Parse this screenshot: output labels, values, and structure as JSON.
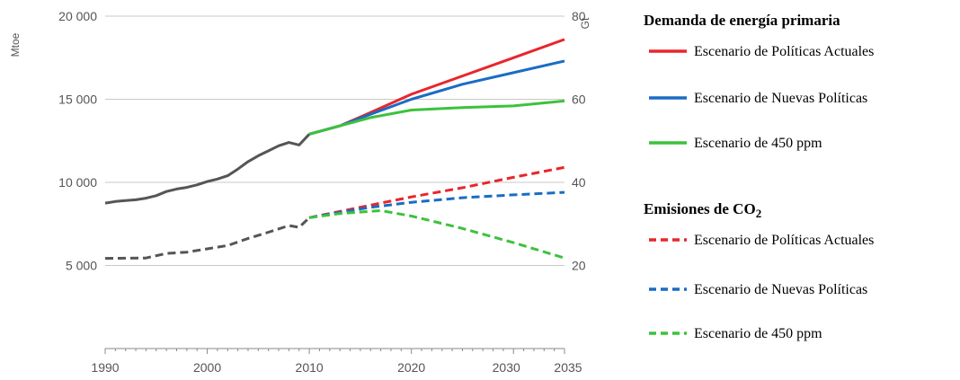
{
  "chart_data": {
    "type": "line",
    "x_ticks": [
      "1990",
      "2000",
      "2010",
      "2020",
      "2030",
      "2035"
    ],
    "xlim": [
      1990,
      2035
    ],
    "left_axis": {
      "unit": "Mtoe",
      "ticks": [
        "5 000",
        "10 000",
        "15 000",
        "20 000"
      ],
      "ylim": [
        0,
        20000
      ]
    },
    "right_axis": {
      "unit": "Gt",
      "ticks": [
        "20",
        "40",
        "60",
        "80"
      ],
      "ylim": [
        0,
        80
      ]
    },
    "grid": true,
    "legend_position": "right",
    "legend_groups": [
      {
        "title": "Demanda de energía primaria",
        "entries": [
          {
            "label": "Escenario de Políticas Actuales",
            "color": "#e8262b",
            "style": "solid"
          },
          {
            "label": "Escenario de Nuevas Políticas",
            "color": "#1a6cc4",
            "style": "solid"
          },
          {
            "label": "Escenario de 450 ppm",
            "color": "#3cc23c",
            "style": "solid"
          }
        ]
      },
      {
        "title": "Emisiones de CO",
        "title_subscript": "2",
        "entries": [
          {
            "label": "Escenario de Políticas Actuales",
            "color": "#e8262b",
            "style": "dashed"
          },
          {
            "label": "Escenario de Nuevas Políticas",
            "color": "#1a6cc4",
            "style": "dashed"
          },
          {
            "label": "Escenario de 450 ppm",
            "color": "#3cc23c",
            "style": "dashed"
          }
        ]
      }
    ],
    "series": [
      {
        "axis": "left",
        "style": "solid",
        "color": "#555555",
        "points": [
          [
            1990,
            8750
          ],
          [
            1991,
            8850
          ],
          [
            1992,
            8900
          ],
          [
            1993,
            8950
          ],
          [
            1994,
            9050
          ],
          [
            1995,
            9200
          ],
          [
            1996,
            9450
          ],
          [
            1997,
            9600
          ],
          [
            1998,
            9700
          ],
          [
            1999,
            9850
          ],
          [
            2000,
            10050
          ],
          [
            2001,
            10200
          ],
          [
            2002,
            10400
          ],
          [
            2003,
            10800
          ],
          [
            2004,
            11250
          ],
          [
            2005,
            11600
          ],
          [
            2006,
            11900
          ],
          [
            2007,
            12200
          ],
          [
            2008,
            12400
          ],
          [
            2009,
            12250
          ],
          [
            2010,
            12900
          ]
        ]
      },
      {
        "axis": "left",
        "style": "solid",
        "color": "#e8262b",
        "points": [
          [
            2010,
            12900
          ],
          [
            2013,
            13400
          ],
          [
            2016,
            14200
          ],
          [
            2020,
            15300
          ],
          [
            2025,
            16400
          ],
          [
            2030,
            17500
          ],
          [
            2035,
            18600
          ]
        ]
      },
      {
        "axis": "left",
        "style": "solid",
        "color": "#1a6cc4",
        "points": [
          [
            2010,
            12900
          ],
          [
            2013,
            13400
          ],
          [
            2016,
            14100
          ],
          [
            2020,
            15000
          ],
          [
            2025,
            15900
          ],
          [
            2030,
            16600
          ],
          [
            2035,
            17300
          ]
        ]
      },
      {
        "axis": "left",
        "style": "solid",
        "color": "#3cc23c",
        "points": [
          [
            2010,
            12900
          ],
          [
            2013,
            13400
          ],
          [
            2016,
            13900
          ],
          [
            2020,
            14350
          ],
          [
            2025,
            14500
          ],
          [
            2030,
            14600
          ],
          [
            2035,
            14900
          ]
        ]
      },
      {
        "axis": "right",
        "style": "dashed",
        "color": "#555555",
        "points": [
          [
            1990,
            21.7
          ],
          [
            1994,
            21.8
          ],
          [
            1996,
            22.9
          ],
          [
            1998,
            23.2
          ],
          [
            2000,
            24.0
          ],
          [
            2002,
            24.8
          ],
          [
            2004,
            26.5
          ],
          [
            2006,
            28.0
          ],
          [
            2008,
            29.6
          ],
          [
            2009,
            29.2
          ],
          [
            2010,
            31.5
          ]
        ]
      },
      {
        "axis": "right",
        "style": "dashed",
        "color": "#e8262b",
        "points": [
          [
            2010,
            31.5
          ],
          [
            2013,
            33.0
          ],
          [
            2016,
            34.5
          ],
          [
            2020,
            36.5
          ],
          [
            2025,
            38.7
          ],
          [
            2030,
            41.2
          ],
          [
            2035,
            43.6
          ]
        ]
      },
      {
        "axis": "right",
        "style": "dashed",
        "color": "#1a6cc4",
        "points": [
          [
            2010,
            31.5
          ],
          [
            2013,
            32.8
          ],
          [
            2016,
            34.0
          ],
          [
            2020,
            35.2
          ],
          [
            2025,
            36.3
          ],
          [
            2030,
            37.0
          ],
          [
            2035,
            37.6
          ]
        ]
      },
      {
        "axis": "right",
        "style": "dashed",
        "color": "#3cc23c",
        "points": [
          [
            2010,
            31.5
          ],
          [
            2013,
            32.5
          ],
          [
            2017,
            33.2
          ],
          [
            2020,
            31.9
          ],
          [
            2025,
            28.9
          ],
          [
            2030,
            25.5
          ],
          [
            2035,
            21.8
          ]
        ]
      }
    ]
  }
}
